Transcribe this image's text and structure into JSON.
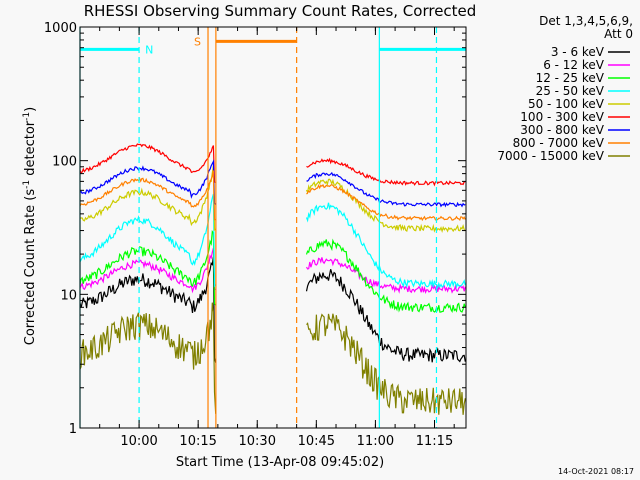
{
  "chart_data": {
    "type": "line",
    "title": "RHESSI Observing Summary Count Rates, Corrected",
    "xlabel": "Start Time (13-Apr-08 09:45:02)",
    "ylabel_main": "Corrected Count Rate (s",
    "ylabel_sup1": "-1",
    "ylabel_mid": " detector",
    "ylabel_sup2": "-1",
    "ylabel_end": ")",
    "y_scale": "log",
    "ylim": [
      1,
      1000
    ],
    "xlim_minutes": [
      -15.0,
      83.0
    ],
    "x_ticks": [
      {
        "label": "10:00",
        "value": 0
      },
      {
        "label": "10:15",
        "value": 15
      },
      {
        "label": "10:30",
        "value": 30
      },
      {
        "label": "10:45",
        "value": 45
      },
      {
        "label": "11:00",
        "value": 60
      },
      {
        "label": "11:15",
        "value": 75
      }
    ],
    "y_ticks": [
      {
        "label": "1",
        "value": 1
      },
      {
        "label": "10",
        "value": 10
      },
      {
        "label": "100",
        "value": 100
      },
      {
        "label": "1000",
        "value": 1000
      }
    ],
    "legend_header": [
      "Det 1,3,4,5,6,9,",
      "Att 0"
    ],
    "legend_position": "right",
    "series": [
      {
        "name": "3 - 6 keV",
        "color": "#000000",
        "base": 8,
        "peak": 13,
        "post": 3.5,
        "flare_end": 14,
        "noise": 0.12
      },
      {
        "name": "6 - 12 keV",
        "color": "#ff00ff",
        "base": 11,
        "peak": 17,
        "post": 11,
        "flare_end": 18,
        "noise": 0.06
      },
      {
        "name": "12 - 25 keV",
        "color": "#00ff00",
        "base": 12,
        "peak": 21,
        "post": 8,
        "flare_end": 24,
        "noise": 0.08
      },
      {
        "name": "25 - 50 keV",
        "color": "#00ffff",
        "base": 17,
        "peak": 36,
        "post": 12,
        "flare_end": 46,
        "noise": 0.06
      },
      {
        "name": "50 - 100 keV",
        "color": "#cccc00",
        "base": 34,
        "peak": 58,
        "post": 31,
        "flare_end": 70,
        "noise": 0.05
      },
      {
        "name": "100 - 300 keV",
        "color": "#ff0000",
        "base": 80,
        "peak": 130,
        "post": 68,
        "flare_end": 100,
        "noise": 0.03
      },
      {
        "name": "300 - 800 keV",
        "color": "#0000ff",
        "base": 55,
        "peak": 88,
        "post": 47,
        "flare_end": 80,
        "noise": 0.03
      },
      {
        "name": "800 - 7000 keV",
        "color": "#ff8000",
        "base": 45,
        "peak": 72,
        "post": 37,
        "flare_end": 65,
        "noise": 0.03
      },
      {
        "name": "7000 - 15000 keV",
        "color": "#808000",
        "base": 3.5,
        "peak": 6,
        "post": 1.6,
        "flare_end": 6,
        "noise": 0.25
      }
    ],
    "shape": {
      "data_gaps": [
        [
          19.5,
          42.5
        ]
      ],
      "rise_start": 13,
      "rise_end": 19,
      "post_gap_start": 42.5,
      "peak_time": 0,
      "decay_end": 58
    },
    "overlays": {
      "night_bar": {
        "label": "N",
        "color": "#00ffff",
        "segments": [
          [
            -15,
            0
          ],
          [
            61,
            83
          ]
        ],
        "level": 680
      },
      "saa_bar": {
        "label": "S",
        "color": "#ff8000",
        "segment": [
          19.5,
          40
        ],
        "level": 780
      },
      "vlines": [
        {
          "x": -15,
          "color": "#00ffff",
          "style": "solid"
        },
        {
          "x": 0,
          "color": "#00ffff",
          "style": "dashed"
        },
        {
          "x": 17.5,
          "color": "#ff8000",
          "style": "solid"
        },
        {
          "x": 19.5,
          "color": "#ff8000",
          "style": "solid"
        },
        {
          "x": 40,
          "color": "#ff8000",
          "style": "dashed"
        },
        {
          "x": 61,
          "color": "#00ffff",
          "style": "solid"
        },
        {
          "x": 75.5,
          "color": "#00ffff",
          "style": "dashed"
        }
      ]
    },
    "footer_date": "14-Oct-2021 08:17"
  }
}
